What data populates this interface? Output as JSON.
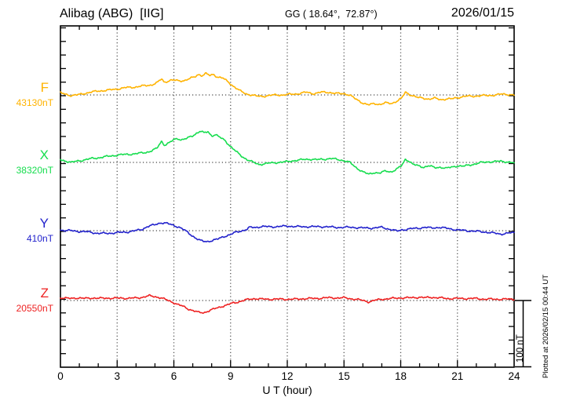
{
  "header": {
    "title": "Alibag (ABG)  [IIG]",
    "gg_coords": "GG ( 18.64°,  72.87°)",
    "date": "2026/01/15"
  },
  "x_axis": {
    "label": "U T (hour)",
    "tick_labels": [
      "0",
      "3",
      "6",
      "9",
      "12",
      "15",
      "18",
      "21",
      "24"
    ]
  },
  "scale_bar_label": "100 nT",
  "plotted_at": "Plotted at 2026/02/15 00:44 UT",
  "chart_data": {
    "type": "line",
    "title": "Alibag (ABG) [IIG] magnetogram for 2026/01/15",
    "xlabel": "U T (hour)",
    "x_range": [
      0,
      24
    ],
    "x_ticks": [
      0,
      3,
      6,
      9,
      12,
      15,
      18,
      21,
      24
    ],
    "grid": "vertical dotted gridlines every 3 hours; dotted horizontal baseline per channel",
    "scale_bar_nT": 100,
    "legend_position": "left margin, one colored label per trace",
    "series": [
      {
        "name": "F",
        "baseline_label": "43130nT",
        "baseline_nT": 43130,
        "color": "#ffb300",
        "points_hour_deltanT": [
          [
            0,
            3
          ],
          [
            0.3,
            1
          ],
          [
            0.6,
            -1
          ],
          [
            0.9,
            0
          ],
          [
            1.2,
            2
          ],
          [
            1.6,
            4
          ],
          [
            2,
            6
          ],
          [
            2.5,
            7
          ],
          [
            3,
            9
          ],
          [
            3.5,
            11
          ],
          [
            4,
            12
          ],
          [
            4.5,
            14
          ],
          [
            4.8,
            15
          ],
          [
            5.1,
            18
          ],
          [
            5.35,
            24
          ],
          [
            5.5,
            19
          ],
          [
            5.8,
            22
          ],
          [
            6,
            22
          ],
          [
            6.3,
            21
          ],
          [
            6.6,
            22
          ],
          [
            6.9,
            25
          ],
          [
            7.1,
            27
          ],
          [
            7.3,
            31
          ],
          [
            7.5,
            29
          ],
          [
            7.7,
            32
          ],
          [
            7.9,
            29
          ],
          [
            8.1,
            31
          ],
          [
            8.3,
            27
          ],
          [
            8.6,
            25
          ],
          [
            8.9,
            19
          ],
          [
            9.2,
            12
          ],
          [
            9.5,
            6
          ],
          [
            9.8,
            2
          ],
          [
            10.1,
            0
          ],
          [
            10.4,
            -2
          ],
          [
            10.7,
            -2
          ],
          [
            11,
            -1
          ],
          [
            11.4,
            0
          ],
          [
            11.8,
            0
          ],
          [
            12.2,
            1
          ],
          [
            12.6,
            2
          ],
          [
            13,
            4
          ],
          [
            13.4,
            2
          ],
          [
            13.8,
            4
          ],
          [
            14.2,
            4
          ],
          [
            14.6,
            2
          ],
          [
            15,
            2
          ],
          [
            15.3,
            0
          ],
          [
            15.6,
            -6
          ],
          [
            16,
            -12
          ],
          [
            16.3,
            -15
          ],
          [
            16.6,
            -13
          ],
          [
            16.9,
            -14
          ],
          [
            17.2,
            -12
          ],
          [
            17.5,
            -13
          ],
          [
            17.8,
            -9
          ],
          [
            18.05,
            -5
          ],
          [
            18.25,
            4
          ],
          [
            18.45,
            1
          ],
          [
            18.65,
            -1
          ],
          [
            18.9,
            -4
          ],
          [
            19.2,
            -5
          ],
          [
            19.5,
            -6
          ],
          [
            19.8,
            -5
          ],
          [
            20.1,
            -7
          ],
          [
            20.4,
            -6
          ],
          [
            20.7,
            -6
          ],
          [
            21,
            -4
          ],
          [
            21.4,
            -2
          ],
          [
            21.8,
            -2
          ],
          [
            22.2,
            -1
          ],
          [
            22.6,
            -1
          ],
          [
            23,
            0
          ],
          [
            23.3,
            1
          ],
          [
            23.6,
            1
          ],
          [
            24,
            0
          ]
        ]
      },
      {
        "name": "X",
        "baseline_label": "38320nT",
        "baseline_nT": 38320,
        "color": "#16dd4e",
        "points_hour_deltanT": [
          [
            0,
            4
          ],
          [
            0.3,
            2
          ],
          [
            0.6,
            0
          ],
          [
            0.9,
            2
          ],
          [
            1.3,
            4
          ],
          [
            1.7,
            6
          ],
          [
            2,
            7
          ],
          [
            2.5,
            9
          ],
          [
            3,
            11
          ],
          [
            3.5,
            12
          ],
          [
            4,
            13
          ],
          [
            4.5,
            15
          ],
          [
            4.8,
            17
          ],
          [
            5.1,
            21
          ],
          [
            5.35,
            32
          ],
          [
            5.5,
            26
          ],
          [
            5.8,
            30
          ],
          [
            6,
            34
          ],
          [
            6.2,
            36
          ],
          [
            6.4,
            34
          ],
          [
            6.7,
            36
          ],
          [
            7,
            40
          ],
          [
            7.2,
            44
          ],
          [
            7.4,
            47
          ],
          [
            7.6,
            44
          ],
          [
            7.8,
            46
          ],
          [
            8,
            40
          ],
          [
            8.2,
            42
          ],
          [
            8.4,
            38
          ],
          [
            8.7,
            33
          ],
          [
            9,
            24
          ],
          [
            9.3,
            16
          ],
          [
            9.6,
            9
          ],
          [
            9.9,
            4
          ],
          [
            10.2,
            0
          ],
          [
            10.5,
            -3
          ],
          [
            10.8,
            -2
          ],
          [
            11.1,
            -1
          ],
          [
            11.5,
            0
          ],
          [
            12,
            1
          ],
          [
            12.4,
            3
          ],
          [
            12.8,
            4
          ],
          [
            13.2,
            5
          ],
          [
            13.6,
            4
          ],
          [
            14,
            5
          ],
          [
            14.3,
            6
          ],
          [
            14.7,
            4
          ],
          [
            15,
            3
          ],
          [
            15.3,
            0
          ],
          [
            15.6,
            -7
          ],
          [
            16,
            -14
          ],
          [
            16.3,
            -18
          ],
          [
            16.6,
            -15
          ],
          [
            16.9,
            -16
          ],
          [
            17.2,
            -13
          ],
          [
            17.5,
            -14
          ],
          [
            17.8,
            -10
          ],
          [
            18.05,
            -5
          ],
          [
            18.25,
            5
          ],
          [
            18.45,
            2
          ],
          [
            18.65,
            -3
          ],
          [
            18.9,
            -5
          ],
          [
            19.2,
            -7
          ],
          [
            19.5,
            -5
          ],
          [
            19.8,
            -8
          ],
          [
            20.1,
            -7
          ],
          [
            20.4,
            -9
          ],
          [
            20.7,
            -7
          ],
          [
            21,
            -5
          ],
          [
            21.3,
            -6
          ],
          [
            21.6,
            -4
          ],
          [
            22,
            -2
          ],
          [
            22.3,
            0
          ],
          [
            22.6,
            1
          ],
          [
            23,
            1
          ],
          [
            23.3,
            2
          ],
          [
            23.6,
            1
          ],
          [
            24,
            -1
          ]
        ]
      },
      {
        "name": "Y",
        "baseline_label": "410nT",
        "baseline_nT": 410,
        "color": "#2222cc",
        "points_hour_deltanT": [
          [
            0,
            1
          ],
          [
            0.5,
            0
          ],
          [
            1,
            -1
          ],
          [
            1.5,
            -2
          ],
          [
            2,
            -4
          ],
          [
            2.5,
            -4
          ],
          [
            3,
            -3
          ],
          [
            3.5,
            -2
          ],
          [
            4,
            0
          ],
          [
            4.3,
            2
          ],
          [
            4.6,
            6
          ],
          [
            5,
            9
          ],
          [
            5.3,
            12
          ],
          [
            5.6,
            11
          ],
          [
            6,
            8
          ],
          [
            6.3,
            5
          ],
          [
            6.6,
            0
          ],
          [
            6.9,
            -6
          ],
          [
            7.2,
            -12
          ],
          [
            7.4,
            -15
          ],
          [
            7.6,
            -16
          ],
          [
            7.8,
            -16
          ],
          [
            8,
            -15
          ],
          [
            8.3,
            -13
          ],
          [
            8.6,
            -9
          ],
          [
            9,
            -6
          ],
          [
            9.3,
            -2
          ],
          [
            9.6,
            0
          ],
          [
            9.9,
            2
          ],
          [
            10,
            5
          ],
          [
            10.3,
            5
          ],
          [
            10.6,
            6
          ],
          [
            11,
            6
          ],
          [
            11.5,
            6
          ],
          [
            12,
            7
          ],
          [
            12.5,
            6
          ],
          [
            13,
            6
          ],
          [
            13.5,
            6
          ],
          [
            14,
            6
          ],
          [
            14.5,
            5
          ],
          [
            15,
            5
          ],
          [
            15.5,
            5
          ],
          [
            16,
            4
          ],
          [
            16.5,
            4
          ],
          [
            17,
            5
          ],
          [
            17.3,
            3
          ],
          [
            17.6,
            1
          ],
          [
            17.8,
            -1
          ],
          [
            18,
            1
          ],
          [
            18.3,
            2
          ],
          [
            18.6,
            3
          ],
          [
            19,
            4
          ],
          [
            19.3,
            5
          ],
          [
            19.6,
            4
          ],
          [
            20,
            5
          ],
          [
            20.3,
            4
          ],
          [
            20.6,
            3
          ],
          [
            21,
            1
          ],
          [
            21.5,
            0
          ],
          [
            22,
            -1
          ],
          [
            22.5,
            -2
          ],
          [
            23,
            -4
          ],
          [
            23.3,
            -5
          ],
          [
            23.6,
            -4
          ],
          [
            24,
            -3
          ]
        ]
      },
      {
        "name": "Z",
        "baseline_label": "20550nT",
        "baseline_nT": 20550,
        "color": "#ee2222",
        "points_hour_deltanT": [
          [
            0,
            4
          ],
          [
            0.4,
            3
          ],
          [
            0.8,
            4
          ],
          [
            1.2,
            3
          ],
          [
            1.6,
            4
          ],
          [
            2,
            3
          ],
          [
            2.4,
            4
          ],
          [
            2.8,
            3
          ],
          [
            3.2,
            4
          ],
          [
            3.6,
            3
          ],
          [
            4,
            4
          ],
          [
            4.4,
            5
          ],
          [
            4.7,
            7
          ],
          [
            5,
            6
          ],
          [
            5.3,
            4
          ],
          [
            5.6,
            1
          ],
          [
            5.9,
            -2
          ],
          [
            6.2,
            -6
          ],
          [
            6.5,
            -9
          ],
          [
            6.8,
            -13
          ],
          [
            7.1,
            -16
          ],
          [
            7.3,
            -18
          ],
          [
            7.6,
            -18
          ],
          [
            7.9,
            -15
          ],
          [
            8.2,
            -12
          ],
          [
            8.5,
            -9
          ],
          [
            8.8,
            -7
          ],
          [
            9.1,
            -4
          ],
          [
            9.4,
            -2
          ],
          [
            9.7,
            0
          ],
          [
            10,
            2
          ],
          [
            10.3,
            3
          ],
          [
            10.6,
            2
          ],
          [
            11,
            2
          ],
          [
            11.5,
            2
          ],
          [
            12,
            2
          ],
          [
            12.5,
            2
          ],
          [
            13,
            3
          ],
          [
            13.5,
            3
          ],
          [
            14,
            4
          ],
          [
            14.5,
            4
          ],
          [
            15,
            4
          ],
          [
            15.3,
            3
          ],
          [
            15.6,
            2
          ],
          [
            16,
            0
          ],
          [
            16.3,
            -2
          ],
          [
            16.6,
            0
          ],
          [
            17,
            2
          ],
          [
            17.5,
            3
          ],
          [
            18,
            4
          ],
          [
            18.5,
            4
          ],
          [
            19,
            5
          ],
          [
            19.3,
            4
          ],
          [
            19.6,
            5
          ],
          [
            20,
            4
          ],
          [
            20.5,
            3
          ],
          [
            21,
            3
          ],
          [
            21.5,
            3
          ],
          [
            22,
            3
          ],
          [
            22.5,
            2
          ],
          [
            23,
            2
          ],
          [
            23.5,
            2
          ],
          [
            24,
            2
          ]
        ]
      }
    ]
  }
}
